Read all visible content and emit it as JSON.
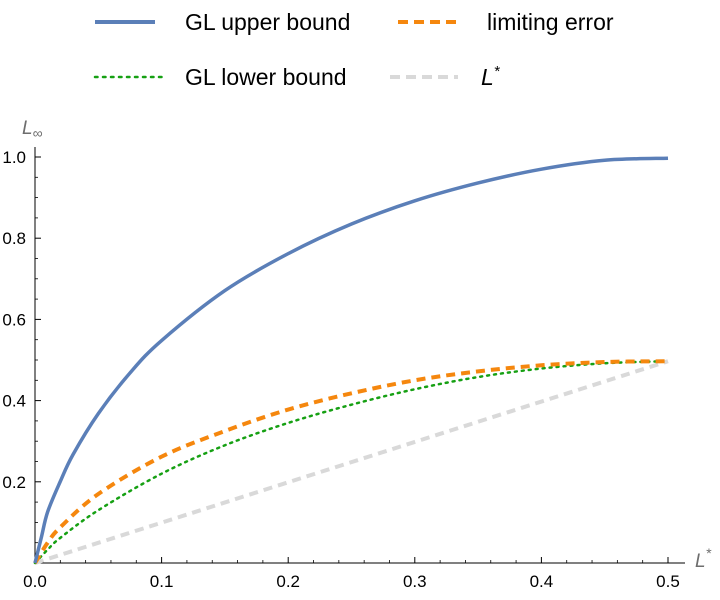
{
  "chart_data": {
    "type": "line",
    "xlabel": "L*",
    "xlabel_main": "L",
    "xlabel_sup": "*",
    "ylabel": "L∞",
    "ylabel_main": "L",
    "ylabel_sub": "∞",
    "xlim": [
      0,
      0.5
    ],
    "ylim": [
      0,
      1.0
    ],
    "xticks": [
      0.0,
      0.1,
      0.2,
      0.3,
      0.4,
      0.5
    ],
    "xtick_labels": [
      "0.0",
      "0.1",
      "0.2",
      "0.3",
      "0.4",
      "0.5"
    ],
    "yticks": [
      0.2,
      0.4,
      0.6,
      0.8,
      1.0
    ],
    "ytick_labels": [
      "0.2",
      "0.4",
      "0.6",
      "0.8",
      "1.0"
    ],
    "grid": false,
    "legend_position": "top",
    "series": [
      {
        "name": "GL upper bound",
        "color": "#5b7fb8",
        "style": "solid",
        "x": [
          0,
          0.005,
          0.01,
          0.02,
          0.03,
          0.05,
          0.075,
          0.1,
          0.15,
          0.2,
          0.25,
          0.3,
          0.35,
          0.4,
          0.45,
          0.5
        ],
        "y": [
          0,
          0.063,
          0.126,
          0.201,
          0.267,
          0.368,
          0.468,
          0.548,
          0.671,
          0.762,
          0.835,
          0.892,
          0.936,
          0.97,
          0.992,
          0.997
        ]
      },
      {
        "name": "limiting error",
        "color": "#f5870e",
        "style": "dashed",
        "x": [
          0,
          0.01,
          0.02,
          0.05,
          0.1,
          0.15,
          0.2,
          0.25,
          0.3,
          0.35,
          0.4,
          0.45,
          0.5
        ],
        "y": [
          0,
          0.05,
          0.088,
          0.17,
          0.262,
          0.325,
          0.378,
          0.418,
          0.45,
          0.472,
          0.487,
          0.495,
          0.497
        ]
      },
      {
        "name": "GL lower bound",
        "color": "#16a013",
        "style": "dotted",
        "x": [
          0,
          0.01,
          0.02,
          0.05,
          0.1,
          0.15,
          0.2,
          0.25,
          0.3,
          0.35,
          0.4,
          0.45,
          0.5
        ],
        "y": [
          0,
          0.033,
          0.062,
          0.13,
          0.22,
          0.29,
          0.345,
          0.39,
          0.428,
          0.458,
          0.479,
          0.492,
          0.497
        ]
      },
      {
        "name": "L*",
        "color": "#d9d9d9",
        "style": "dashed",
        "x": [
          0,
          0.5
        ],
        "y": [
          0,
          0.497
        ]
      }
    ]
  }
}
